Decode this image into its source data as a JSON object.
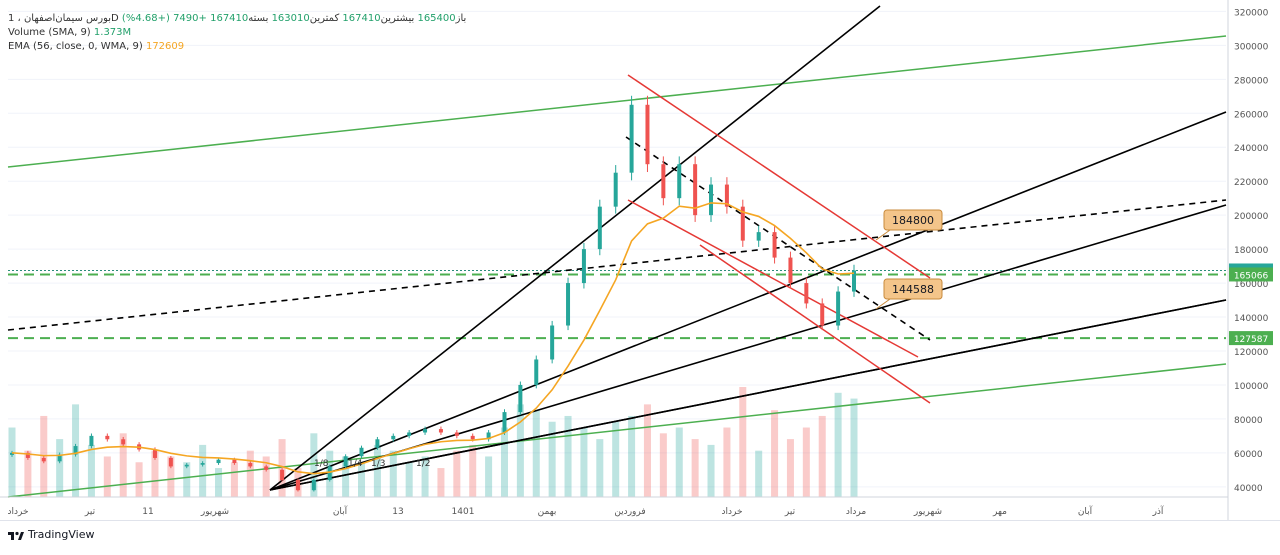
{
  "header": {
    "symbol": "بورس سیمان‌اصفهان ، 1D",
    "values": [
      {
        "label": "باز",
        "value": "165400"
      },
      {
        "label": "بیشترین",
        "value": "167410"
      },
      {
        "label": "کمترین",
        "value": "163010"
      },
      {
        "label": "بسته",
        "value": "167410"
      }
    ],
    "change": "+7490 (+4.68%)",
    "volume_label": "Volume (SMA, 9)",
    "volume_value": "1.373M",
    "ema_label": "EMA (56, close, 0, WMA, 9)",
    "ema_value": "172609"
  },
  "brand": "TradingView",
  "colors": {
    "up": "#26a69a",
    "down": "#ef5350",
    "green_line": "#4caf50",
    "red_line": "#e53935",
    "ema": "#f5a623",
    "black_line": "#000000",
    "callout": "#f4c58a"
  },
  "chart_data": {
    "type": "candlestick",
    "y_axis": {
      "ylim": [
        34000,
        322000
      ],
      "ticks": [
        40000,
        60000,
        80000,
        100000,
        120000,
        140000,
        160000,
        180000,
        200000,
        220000,
        240000,
        260000,
        280000,
        300000,
        320000
      ]
    },
    "x_tick_labels": [
      "خرداد",
      "تیر",
      "11",
      "شهریور",
      "آبان",
      "13",
      "1401",
      "بهمن",
      "فروردین",
      "خرداد",
      "تیر",
      "مرداد",
      "شهریور",
      "مهر",
      "آبان",
      "آذر"
    ],
    "price_labels": [
      {
        "value": 167410,
        "text": "167410",
        "color": "#26a69a"
      },
      {
        "value": 165066,
        "text": "165066",
        "color": "#4caf50"
      },
      {
        "value": 127587,
        "text": "127587",
        "color": "#4caf50"
      }
    ],
    "callouts": [
      "184800",
      "144588"
    ],
    "fib_labels": [
      "1/8",
      "1/4",
      "1/3",
      "1/2"
    ],
    "series": [
      {
        "name": "Close",
        "values": [
          60000,
          57000,
          55000,
          59000,
          64000,
          70000,
          68000,
          65000,
          62000,
          57000,
          52000,
          53000,
          54000,
          56000,
          54000,
          52000,
          50000,
          44000,
          38000,
          44000,
          52000,
          58000,
          63000,
          68000,
          70000,
          72000,
          74000,
          72000,
          70000,
          68000,
          72000,
          84000,
          100000,
          115000,
          135000,
          160000,
          180000,
          205000,
          225000,
          265000,
          230000,
          210000,
          230000,
          200000,
          218000,
          205000,
          185000,
          190000,
          175000,
          160000,
          148000,
          135000,
          155000,
          167410
        ]
      },
      {
        "name": "Volume",
        "values": [
          60,
          40,
          70,
          50,
          80,
          45,
          35,
          55,
          30,
          40,
          35,
          30,
          45,
          25,
          30,
          40,
          35,
          50,
          25,
          55,
          40,
          35,
          30,
          45,
          40,
          30,
          35,
          25,
          40,
          45,
          35,
          60,
          80,
          75,
          65,
          70,
          60,
          50,
          65,
          70,
          80,
          55,
          60,
          50,
          45,
          60,
          95,
          40,
          75,
          50,
          60,
          70,
          90,
          85
        ]
      }
    ]
  }
}
